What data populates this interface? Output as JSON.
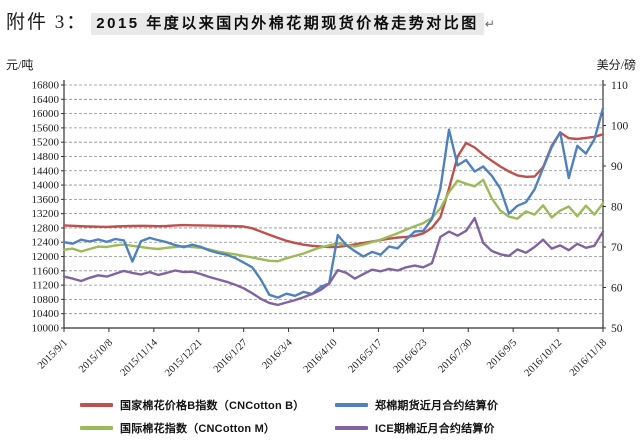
{
  "page": {
    "attachment_label": "附件 3：",
    "title": "2015 年度以来国内外棉花期现货价格走势对比图",
    "paragraph_mark": "↵"
  },
  "chart_data": {
    "type": "line",
    "title": "2015 年度以来国内外棉花期现货价格走势对比图",
    "grid": "horizontal-dashed",
    "legend_position": "bottom",
    "left_axis": {
      "unit": "元/吨",
      "min": 10000,
      "max": 16800,
      "step": 400,
      "ticks": [
        16800,
        16400,
        16000,
        15600,
        15200,
        14800,
        14400,
        14000,
        13600,
        13200,
        12800,
        12400,
        12000,
        11600,
        11200,
        10800,
        10400,
        10000
      ]
    },
    "right_axis": {
      "unit": "美分/磅",
      "min": 50,
      "max": 110,
      "step": 10,
      "ticks": [
        110,
        100,
        90,
        80,
        70,
        60,
        50
      ]
    },
    "x_labels": [
      "2015/9/1",
      "2015/10/8",
      "2015/11/14",
      "2015/12/21",
      "2016/1/27",
      "2016/3/4",
      "2016/4/10",
      "2016/5/17",
      "2016/6/23",
      "2016/7/30",
      "2016/9/5",
      "2016/10/12",
      "2016/11/18"
    ],
    "series": [
      {
        "id": "cncotton-b",
        "name": "国家棉花价格B指数（CNCotton B）",
        "color": "#C0504D",
        "axis": "left",
        "values": [
          12870,
          12860,
          12850,
          12840,
          12835,
          12830,
          12840,
          12850,
          12855,
          12860,
          12855,
          12850,
          12855,
          12870,
          12880,
          12875,
          12870,
          12865,
          12860,
          12855,
          12850,
          12840,
          12790,
          12700,
          12610,
          12520,
          12440,
          12380,
          12330,
          12300,
          12280,
          12265,
          12270,
          12300,
          12340,
          12380,
          12420,
          12460,
          12500,
          12530,
          12550,
          12580,
          12650,
          12800,
          13100,
          13900,
          14800,
          15180,
          15050,
          14850,
          14680,
          14520,
          14380,
          14270,
          14230,
          14240,
          14500,
          15100,
          15470,
          15310,
          15290,
          15320,
          15350,
          15420
        ]
      },
      {
        "id": "zce-cotton-futures",
        "name": "郑棉期货近月合约结算价",
        "color": "#4F81BD",
        "axis": "left",
        "values": [
          12400,
          12360,
          12470,
          12420,
          12480,
          12410,
          12490,
          12450,
          11860,
          12430,
          12520,
          12460,
          12400,
          12320,
          12260,
          12330,
          12270,
          12170,
          12100,
          12050,
          11960,
          11830,
          11700,
          11360,
          10930,
          10850,
          10960,
          10900,
          11010,
          10950,
          11150,
          11250,
          12600,
          12320,
          12150,
          12000,
          12130,
          12050,
          12280,
          12230,
          12480,
          12700,
          12720,
          13050,
          13900,
          15550,
          14550,
          14700,
          14380,
          14520,
          14260,
          13900,
          13200,
          13420,
          13520,
          13880,
          14480,
          15060,
          15480,
          14200,
          15100,
          14880,
          15280,
          16150
        ]
      },
      {
        "id": "cncotton-m",
        "name": "国际棉花指数（CNCotton M）",
        "color": "#9BBB59",
        "axis": "right",
        "values": [
          69.3,
          69.6,
          68.9,
          69.5,
          70.1,
          70.0,
          70.4,
          70.6,
          70.3,
          70.0,
          69.7,
          69.5,
          69.8,
          70.0,
          70.2,
          70.0,
          69.8,
          69.4,
          68.9,
          68.5,
          68.2,
          67.8,
          67.4,
          67.0,
          66.6,
          66.5,
          67.2,
          67.8,
          68.4,
          69.2,
          69.9,
          70.4,
          70.9,
          70.5,
          70.1,
          70.6,
          71.2,
          71.8,
          72.6,
          73.4,
          74.3,
          75.1,
          75.9,
          77.2,
          79.5,
          83.5,
          86.4,
          85.6,
          85.0,
          86.6,
          82.0,
          79.0,
          77.5,
          77.0,
          78.8,
          78.0,
          80.3,
          77.3,
          79.0,
          80.0,
          77.6,
          80.2,
          78.0,
          80.8
        ]
      },
      {
        "id": "ice-cotton-futures",
        "name": "ICE期棉近月合约结算价",
        "color": "#8064A2",
        "axis": "right",
        "values": [
          62.7,
          62.2,
          61.6,
          62.4,
          63.0,
          62.7,
          63.4,
          64.1,
          63.6,
          63.2,
          63.8,
          63.1,
          63.6,
          64.2,
          63.8,
          63.9,
          63.3,
          62.6,
          62.0,
          61.4,
          60.7,
          59.8,
          58.6,
          57.2,
          56.2,
          55.7,
          56.3,
          56.9,
          57.6,
          58.4,
          59.4,
          61.0,
          64.3,
          63.6,
          62.2,
          63.3,
          64.4,
          64.0,
          64.6,
          64.2,
          65.0,
          65.4,
          65.0,
          66.0,
          72.5,
          73.8,
          72.8,
          74.0,
          77.1,
          71.0,
          69.0,
          68.2,
          67.8,
          69.4,
          68.6,
          70.0,
          71.8,
          69.6,
          70.4,
          69.2,
          70.8,
          69.8,
          70.3,
          73.8
        ]
      }
    ]
  }
}
